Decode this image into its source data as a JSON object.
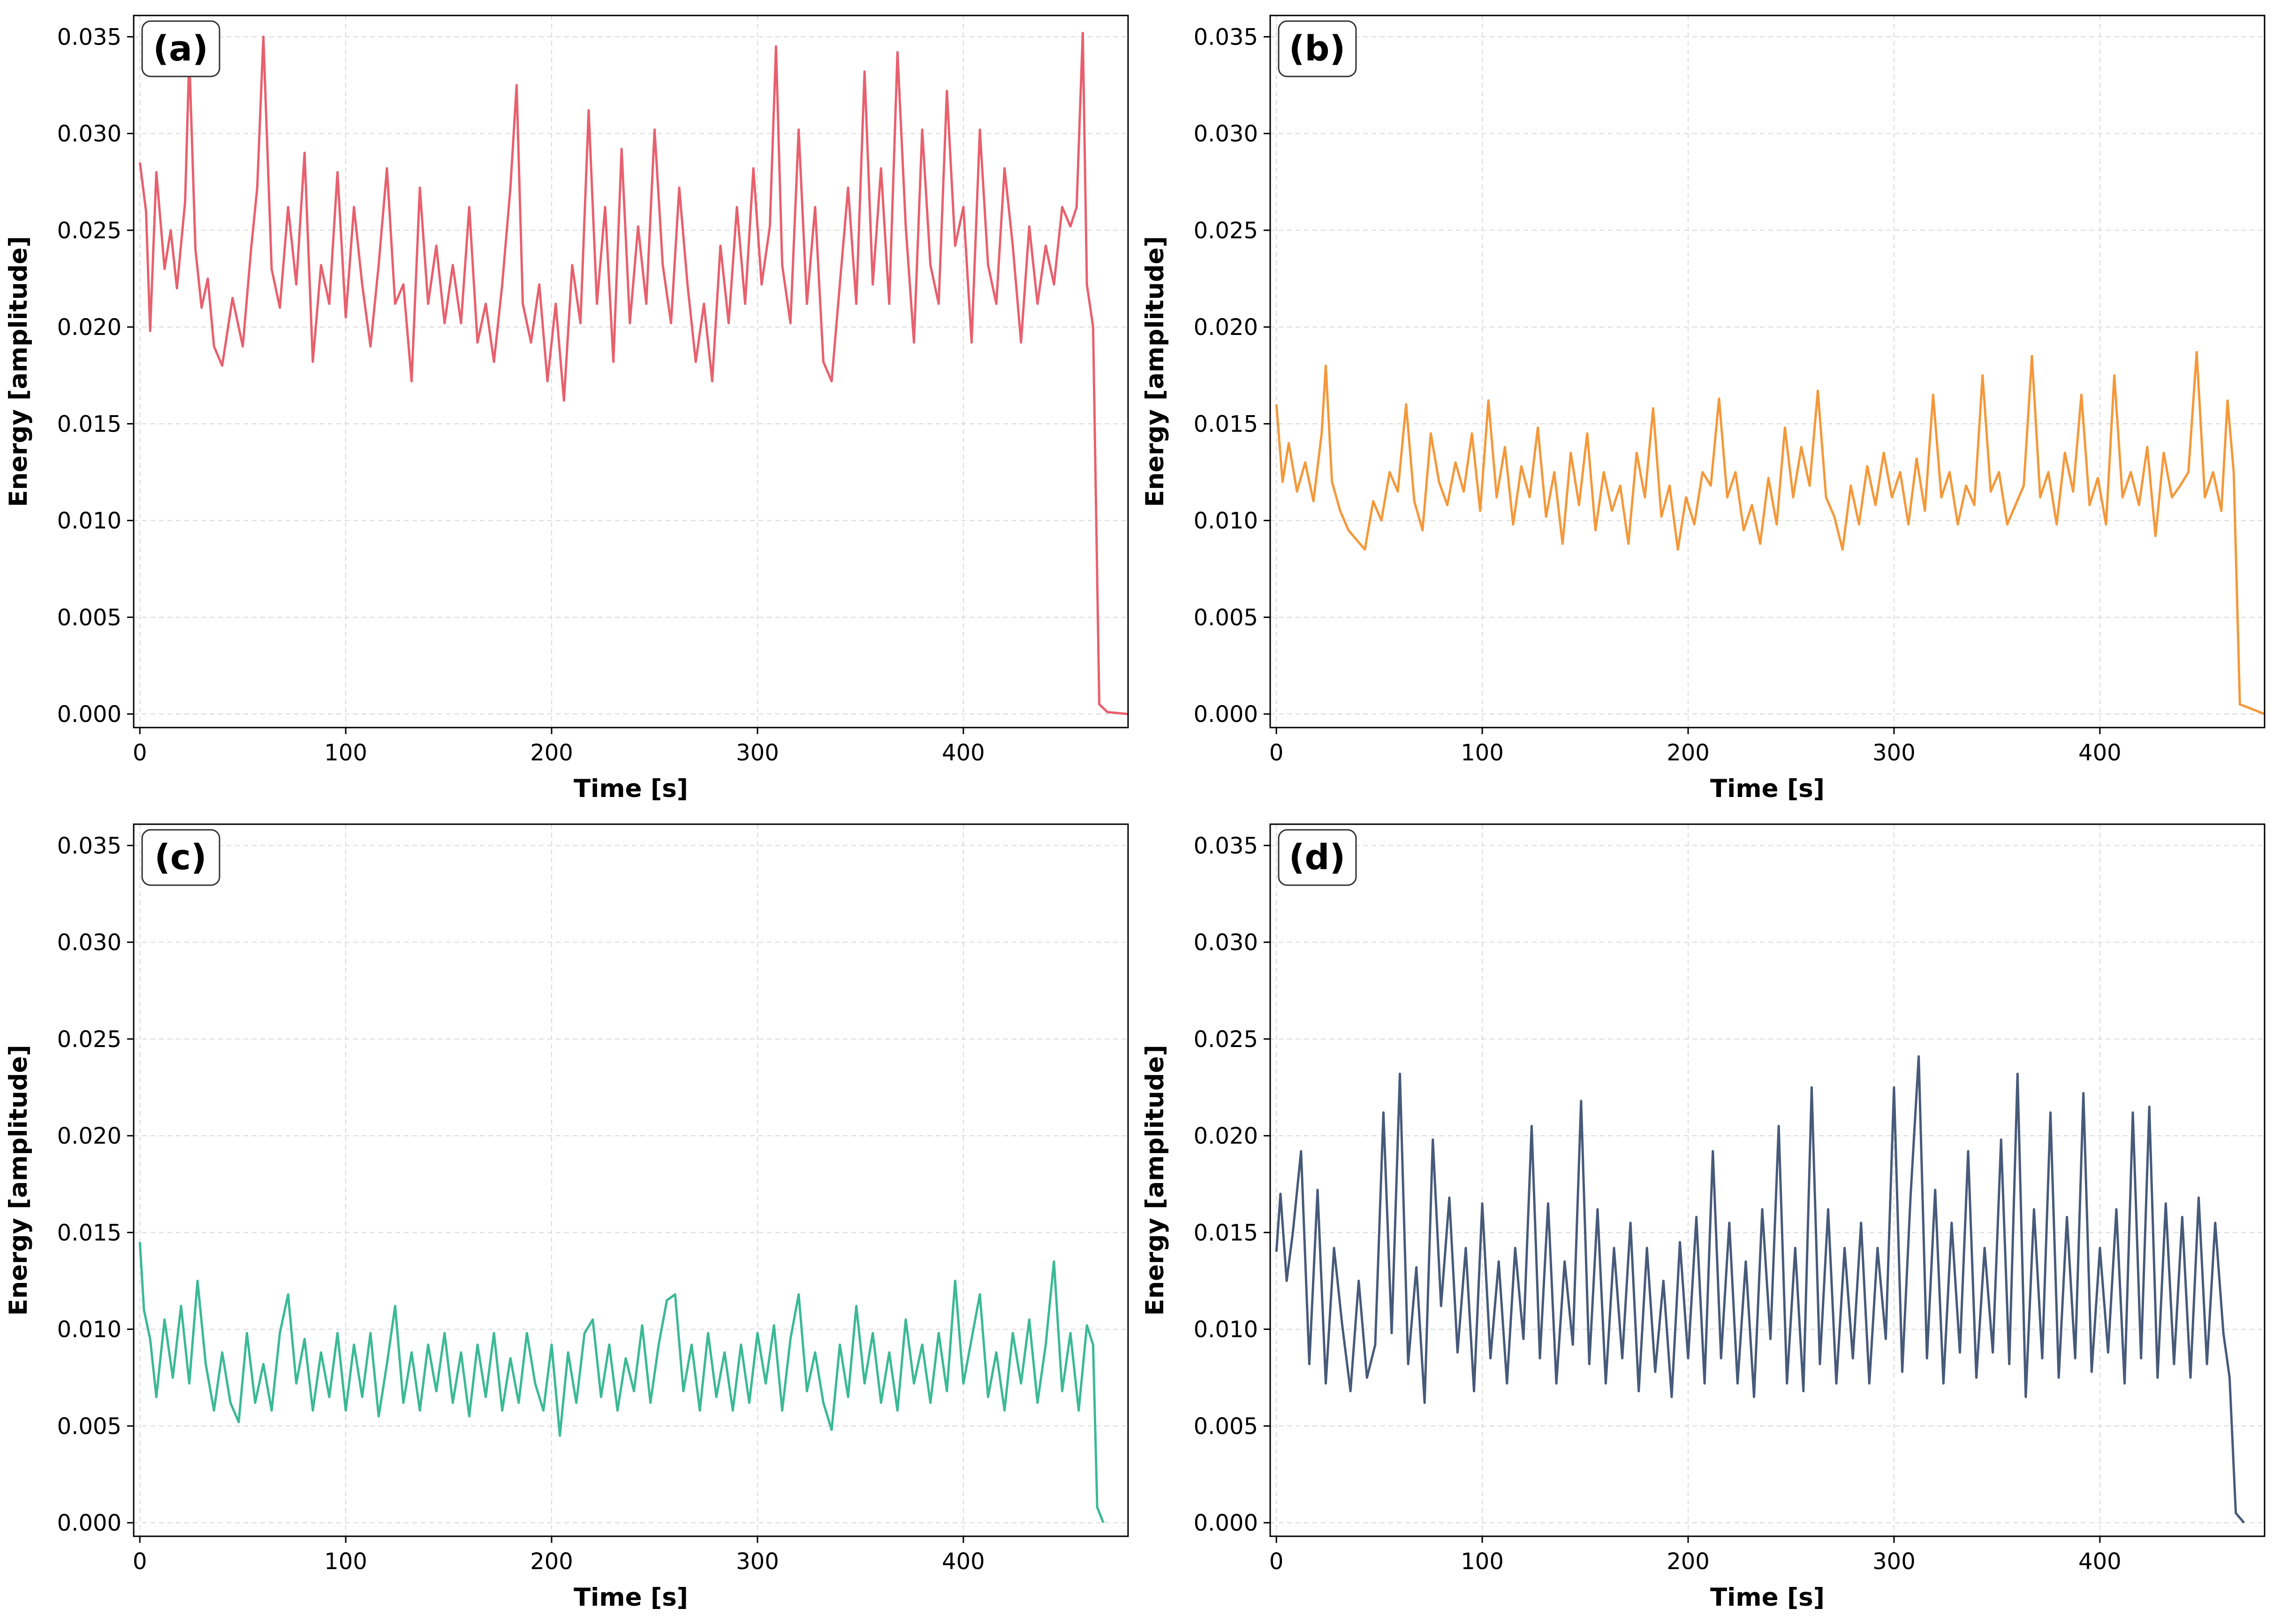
{
  "chart_data": [
    {
      "type": "line",
      "panel_label": "(a)",
      "xlabel": "Time [s]",
      "ylabel": "Energy [amplitude]",
      "xlim": [
        -3,
        480
      ],
      "ylim": [
        -0.0007,
        0.0361
      ],
      "xticks": [
        0,
        100,
        200,
        300,
        400
      ],
      "yticks": [
        0.0,
        0.005,
        0.01,
        0.015,
        0.02,
        0.025,
        0.03,
        0.035
      ],
      "grid": true,
      "color": "#e8606d",
      "x": [
        0,
        3,
        5,
        8,
        12,
        15,
        18,
        22,
        24,
        27,
        30,
        33,
        36,
        40,
        45,
        50,
        54,
        57,
        60,
        64,
        68,
        72,
        76,
        80,
        84,
        88,
        92,
        96,
        100,
        104,
        108,
        112,
        116,
        120,
        124,
        128,
        132,
        136,
        140,
        144,
        148,
        152,
        156,
        160,
        164,
        168,
        172,
        176,
        180,
        183,
        186,
        190,
        194,
        198,
        202,
        206,
        210,
        214,
        218,
        222,
        226,
        230,
        234,
        238,
        242,
        246,
        250,
        254,
        258,
        262,
        266,
        270,
        274,
        278,
        282,
        286,
        290,
        294,
        298,
        302,
        306,
        309,
        312,
        316,
        320,
        324,
        328,
        332,
        336,
        340,
        344,
        348,
        352,
        356,
        360,
        364,
        368,
        372,
        376,
        380,
        384,
        388,
        392,
        396,
        400,
        404,
        408,
        412,
        416,
        420,
        424,
        428,
        432,
        436,
        440,
        444,
        448,
        452,
        455,
        458,
        460,
        463,
        466,
        470,
        480
      ],
      "y": [
        0.0285,
        0.026,
        0.0198,
        0.028,
        0.023,
        0.025,
        0.022,
        0.0265,
        0.034,
        0.024,
        0.021,
        0.0225,
        0.019,
        0.018,
        0.0215,
        0.019,
        0.024,
        0.0272,
        0.035,
        0.023,
        0.021,
        0.0262,
        0.0222,
        0.029,
        0.0182,
        0.0232,
        0.0212,
        0.028,
        0.0205,
        0.0262,
        0.0222,
        0.019,
        0.0232,
        0.0282,
        0.0212,
        0.0222,
        0.0172,
        0.0272,
        0.0212,
        0.0242,
        0.0202,
        0.0232,
        0.0202,
        0.0262,
        0.0192,
        0.0212,
        0.0182,
        0.0222,
        0.0272,
        0.0325,
        0.0212,
        0.0192,
        0.0222,
        0.0172,
        0.0212,
        0.0162,
        0.0232,
        0.0202,
        0.0312,
        0.0212,
        0.0262,
        0.0182,
        0.0292,
        0.0202,
        0.0252,
        0.0212,
        0.0302,
        0.0232,
        0.0202,
        0.0272,
        0.0222,
        0.0182,
        0.0212,
        0.0172,
        0.0242,
        0.0202,
        0.0262,
        0.0212,
        0.0282,
        0.0222,
        0.0252,
        0.0345,
        0.0232,
        0.0202,
        0.0302,
        0.0212,
        0.0262,
        0.0182,
        0.0172,
        0.0222,
        0.0272,
        0.0212,
        0.0332,
        0.0222,
        0.0282,
        0.0212,
        0.0342,
        0.0252,
        0.0192,
        0.0302,
        0.0232,
        0.0212,
        0.0322,
        0.0242,
        0.0262,
        0.0192,
        0.0302,
        0.0232,
        0.0212,
        0.0282,
        0.0242,
        0.0192,
        0.0252,
        0.0212,
        0.0242,
        0.0222,
        0.0262,
        0.0252,
        0.0262,
        0.0352,
        0.0222,
        0.02,
        0.0005,
        0.0001,
        0.0
      ]
    },
    {
      "type": "line",
      "panel_label": "(b)",
      "xlabel": "Time [s]",
      "ylabel": "Energy [amplitude]",
      "xlim": [
        -3,
        480
      ],
      "ylim": [
        -0.0007,
        0.0361
      ],
      "xticks": [
        0,
        100,
        200,
        300,
        400
      ],
      "yticks": [
        0.0,
        0.005,
        0.01,
        0.015,
        0.02,
        0.025,
        0.03,
        0.035
      ],
      "grid": true,
      "color": "#f4983a",
      "x": [
        0,
        3,
        6,
        10,
        14,
        18,
        22,
        24,
        27,
        31,
        35,
        39,
        43,
        47,
        51,
        55,
        59,
        63,
        67,
        71,
        75,
        79,
        83,
        87,
        91,
        95,
        99,
        103,
        107,
        111,
        115,
        119,
        123,
        127,
        131,
        135,
        139,
        143,
        147,
        151,
        155,
        159,
        163,
        167,
        171,
        175,
        179,
        183,
        187,
        191,
        195,
        199,
        203,
        207,
        211,
        215,
        219,
        223,
        227,
        231,
        235,
        239,
        243,
        247,
        251,
        255,
        259,
        263,
        267,
        271,
        275,
        279,
        283,
        287,
        291,
        295,
        299,
        303,
        307,
        311,
        315,
        319,
        323,
        327,
        331,
        335,
        339,
        343,
        347,
        351,
        355,
        359,
        363,
        367,
        371,
        375,
        379,
        383,
        387,
        391,
        395,
        399,
        403,
        407,
        411,
        415,
        419,
        423,
        427,
        431,
        435,
        439,
        443,
        447,
        451,
        455,
        459,
        462,
        465,
        468,
        480
      ],
      "y": [
        0.016,
        0.012,
        0.014,
        0.0115,
        0.013,
        0.011,
        0.0145,
        0.018,
        0.012,
        0.0105,
        0.0095,
        0.009,
        0.0085,
        0.011,
        0.01,
        0.0125,
        0.0115,
        0.016,
        0.011,
        0.0095,
        0.0145,
        0.012,
        0.0108,
        0.013,
        0.0115,
        0.0145,
        0.0105,
        0.0162,
        0.0112,
        0.0138,
        0.0098,
        0.0128,
        0.0112,
        0.0148,
        0.0102,
        0.0125,
        0.0088,
        0.0135,
        0.0108,
        0.0145,
        0.0095,
        0.0125,
        0.0105,
        0.0118,
        0.0088,
        0.0135,
        0.0112,
        0.0158,
        0.0102,
        0.0118,
        0.0085,
        0.0112,
        0.0098,
        0.0125,
        0.0118,
        0.0163,
        0.0112,
        0.0125,
        0.0095,
        0.0108,
        0.0088,
        0.0122,
        0.0098,
        0.0148,
        0.0112,
        0.0138,
        0.0118,
        0.0167,
        0.0112,
        0.0102,
        0.0085,
        0.0118,
        0.0098,
        0.0128,
        0.0108,
        0.0135,
        0.0112,
        0.0125,
        0.0098,
        0.0132,
        0.0105,
        0.0165,
        0.0112,
        0.0125,
        0.0098,
        0.0118,
        0.0108,
        0.0175,
        0.0115,
        0.0125,
        0.0098,
        0.0108,
        0.0118,
        0.0185,
        0.0112,
        0.0125,
        0.0098,
        0.0135,
        0.0115,
        0.0165,
        0.0108,
        0.0122,
        0.0098,
        0.0175,
        0.0112,
        0.0125,
        0.0108,
        0.0138,
        0.0092,
        0.0135,
        0.0112,
        0.0118,
        0.0125,
        0.0187,
        0.0112,
        0.0125,
        0.0105,
        0.0162,
        0.0125,
        0.0005,
        0.0
      ]
    },
    {
      "type": "line",
      "panel_label": "(c)",
      "xlabel": "Time [s]",
      "ylabel": "Energy [amplitude]",
      "xlim": [
        -3,
        480
      ],
      "ylim": [
        -0.0007,
        0.0361
      ],
      "xticks": [
        0,
        100,
        200,
        300,
        400
      ],
      "yticks": [
        0.0,
        0.005,
        0.01,
        0.015,
        0.02,
        0.025,
        0.03,
        0.035
      ],
      "grid": true,
      "color": "#3bb995",
      "x": [
        0,
        2,
        5,
        8,
        12,
        16,
        20,
        24,
        28,
        32,
        36,
        40,
        44,
        48,
        52,
        56,
        60,
        64,
        68,
        72,
        76,
        80,
        84,
        88,
        92,
        96,
        100,
        104,
        108,
        112,
        116,
        120,
        124,
        128,
        132,
        136,
        140,
        144,
        148,
        152,
        156,
        160,
        164,
        168,
        172,
        176,
        180,
        184,
        188,
        192,
        196,
        200,
        204,
        208,
        212,
        216,
        220,
        224,
        228,
        232,
        236,
        240,
        244,
        248,
        252,
        256,
        260,
        264,
        268,
        272,
        276,
        280,
        284,
        288,
        292,
        296,
        300,
        304,
        308,
        312,
        316,
        320,
        324,
        328,
        332,
        336,
        340,
        344,
        348,
        352,
        356,
        360,
        364,
        368,
        372,
        376,
        380,
        384,
        388,
        392,
        396,
        400,
        404,
        408,
        412,
        416,
        420,
        424,
        428,
        432,
        436,
        440,
        444,
        448,
        452,
        456,
        460,
        463,
        465,
        468
      ],
      "y": [
        0.0145,
        0.011,
        0.0095,
        0.0065,
        0.0105,
        0.0075,
        0.0112,
        0.0072,
        0.0125,
        0.0082,
        0.0058,
        0.0088,
        0.0062,
        0.0052,
        0.0098,
        0.0062,
        0.0082,
        0.0058,
        0.0098,
        0.0118,
        0.0072,
        0.0095,
        0.0058,
        0.0088,
        0.0065,
        0.0098,
        0.0058,
        0.0092,
        0.0065,
        0.0098,
        0.0055,
        0.0082,
        0.0112,
        0.0062,
        0.0088,
        0.0058,
        0.0092,
        0.0068,
        0.0098,
        0.0062,
        0.0088,
        0.0055,
        0.0092,
        0.0065,
        0.0098,
        0.0058,
        0.0085,
        0.0062,
        0.0098,
        0.0072,
        0.0058,
        0.0092,
        0.0045,
        0.0088,
        0.0062,
        0.0098,
        0.0105,
        0.0065,
        0.0092,
        0.0058,
        0.0085,
        0.0068,
        0.0102,
        0.0062,
        0.0092,
        0.0115,
        0.0118,
        0.0068,
        0.0092,
        0.0058,
        0.0098,
        0.0065,
        0.0088,
        0.0058,
        0.0092,
        0.0062,
        0.0098,
        0.0072,
        0.0102,
        0.0058,
        0.0095,
        0.0118,
        0.0068,
        0.0088,
        0.0062,
        0.0048,
        0.0092,
        0.0065,
        0.0112,
        0.0072,
        0.0098,
        0.0062,
        0.0088,
        0.0058,
        0.0105,
        0.0072,
        0.0092,
        0.0062,
        0.0098,
        0.0068,
        0.0125,
        0.0072,
        0.0095,
        0.0118,
        0.0065,
        0.0088,
        0.0058,
        0.0098,
        0.0072,
        0.0105,
        0.0062,
        0.0092,
        0.0135,
        0.0068,
        0.0098,
        0.0058,
        0.0102,
        0.0092,
        0.0008,
        0.0
      ]
    },
    {
      "type": "line",
      "panel_label": "(d)",
      "xlabel": "Time [s]",
      "ylabel": "Energy [amplitude]",
      "xlim": [
        -3,
        480
      ],
      "ylim": [
        -0.0007,
        0.0361
      ],
      "xticks": [
        0,
        100,
        200,
        300,
        400
      ],
      "yticks": [
        0.0,
        0.005,
        0.01,
        0.015,
        0.02,
        0.025,
        0.03,
        0.035
      ],
      "grid": true,
      "color": "#475a7a",
      "x": [
        0,
        2,
        5,
        8,
        12,
        16,
        20,
        24,
        28,
        32,
        36,
        40,
        44,
        48,
        52,
        56,
        60,
        64,
        68,
        72,
        76,
        80,
        84,
        88,
        92,
        96,
        100,
        104,
        108,
        112,
        116,
        120,
        124,
        128,
        132,
        136,
        140,
        144,
        148,
        152,
        156,
        160,
        164,
        168,
        172,
        176,
        180,
        184,
        188,
        192,
        196,
        200,
        204,
        208,
        212,
        216,
        220,
        224,
        228,
        232,
        236,
        240,
        244,
        248,
        252,
        256,
        260,
        264,
        268,
        272,
        276,
        280,
        284,
        288,
        292,
        296,
        300,
        304,
        308,
        312,
        316,
        320,
        324,
        328,
        332,
        336,
        340,
        344,
        348,
        352,
        356,
        360,
        364,
        368,
        372,
        376,
        380,
        384,
        388,
        392,
        396,
        400,
        404,
        408,
        412,
        416,
        420,
        424,
        428,
        432,
        436,
        440,
        444,
        448,
        452,
        456,
        460,
        463,
        466,
        470
      ],
      "y": [
        0.014,
        0.017,
        0.0125,
        0.015,
        0.0192,
        0.0082,
        0.0172,
        0.0072,
        0.0142,
        0.0102,
        0.0068,
        0.0125,
        0.0075,
        0.0092,
        0.0212,
        0.0098,
        0.0232,
        0.0082,
        0.0132,
        0.0062,
        0.0198,
        0.0112,
        0.0168,
        0.0088,
        0.0142,
        0.0068,
        0.0165,
        0.0085,
        0.0135,
        0.0072,
        0.0142,
        0.0095,
        0.0205,
        0.0085,
        0.0165,
        0.0072,
        0.0135,
        0.0092,
        0.0218,
        0.0082,
        0.0162,
        0.0072,
        0.0142,
        0.0085,
        0.0155,
        0.0068,
        0.0142,
        0.0078,
        0.0125,
        0.0065,
        0.0145,
        0.0085,
        0.0158,
        0.0072,
        0.0192,
        0.0085,
        0.0155,
        0.0072,
        0.0135,
        0.0065,
        0.0162,
        0.0095,
        0.0205,
        0.0072,
        0.0142,
        0.0068,
        0.0225,
        0.0082,
        0.0162,
        0.0072,
        0.0142,
        0.0085,
        0.0155,
        0.0072,
        0.0142,
        0.0095,
        0.0225,
        0.0078,
        0.0168,
        0.0241,
        0.0085,
        0.0172,
        0.0072,
        0.0155,
        0.0088,
        0.0192,
        0.0075,
        0.0142,
        0.0088,
        0.0198,
        0.0082,
        0.0232,
        0.0065,
        0.0162,
        0.0085,
        0.0212,
        0.0075,
        0.0158,
        0.0085,
        0.0222,
        0.0078,
        0.0142,
        0.0088,
        0.0162,
        0.0072,
        0.0212,
        0.0085,
        0.0215,
        0.0075,
        0.0165,
        0.0082,
        0.0158,
        0.0075,
        0.0168,
        0.0082,
        0.0155,
        0.0098,
        0.0075,
        0.0005,
        0.0
      ]
    }
  ]
}
